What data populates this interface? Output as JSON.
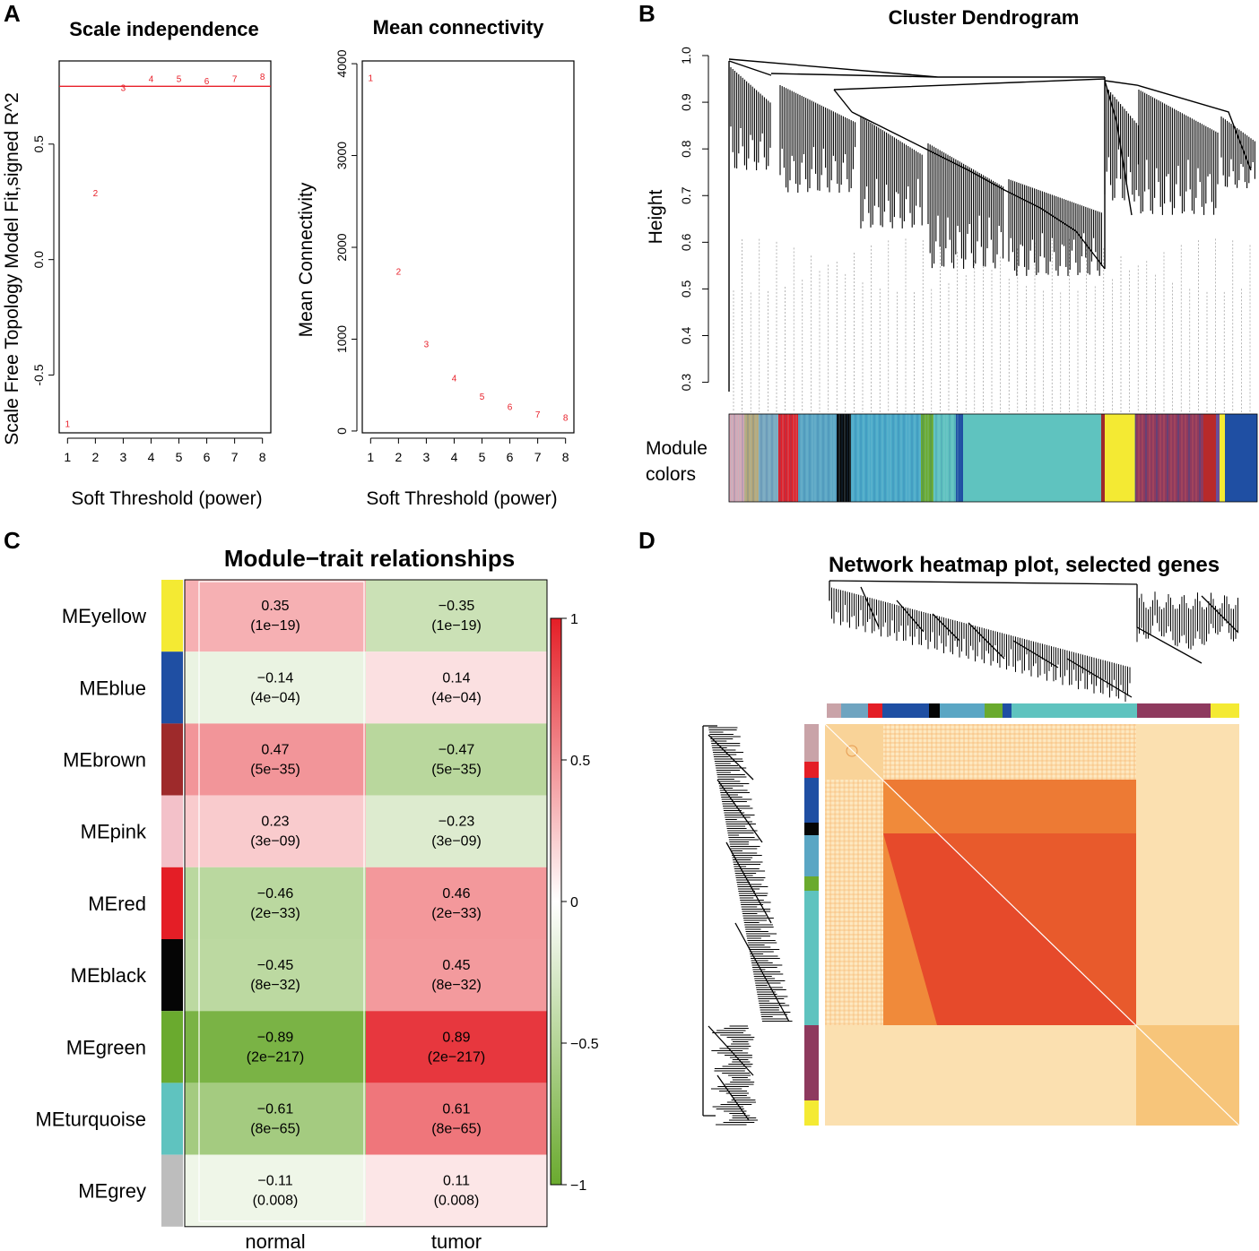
{
  "panels": {
    "A": "A",
    "B": "B",
    "C": "C",
    "D": "D"
  },
  "chart_data": [
    {
      "type": "scatter",
      "id": "scale_independence",
      "title": "Scale independence",
      "xlabel": "Soft Threshold (power)",
      "ylabel": "Scale Free Topology Model Fit,signed R^2",
      "x": [
        1,
        2,
        3,
        4,
        5,
        6,
        7,
        8
      ],
      "y": [
        -0.71,
        0.29,
        0.745,
        0.785,
        0.785,
        0.775,
        0.785,
        0.795
      ],
      "point_labels": [
        "1",
        "2",
        "3",
        "4",
        "5",
        "6",
        "7",
        "8"
      ],
      "xlim": [
        0.7,
        8.3
      ],
      "ylim": [
        -0.75,
        0.86
      ],
      "xticks": [
        "1",
        "2",
        "3",
        "4",
        "5",
        "6",
        "7",
        "8"
      ],
      "yticks": [
        "-0.5",
        "0.0",
        "0.5"
      ],
      "yticks_values": [
        -0.5,
        0,
        0.5
      ],
      "hline": 0.75,
      "hline_color": "#e8202a",
      "point_color": "#e8202a"
    },
    {
      "type": "scatter",
      "id": "mean_connectivity",
      "title": "Mean connectivity",
      "xlabel": "Soft Threshold (power)",
      "ylabel": "Mean Connectivity",
      "x": [
        1,
        2,
        3,
        4,
        5,
        6,
        7,
        8
      ],
      "y": [
        3850,
        1740,
        950,
        580,
        380,
        270,
        185,
        150
      ],
      "point_labels": [
        "1",
        "2",
        "3",
        "4",
        "5",
        "6",
        "7",
        "8"
      ],
      "xlim": [
        0.7,
        8.3
      ],
      "ylim": [
        -20,
        4030
      ],
      "xticks": [
        "1",
        "2",
        "3",
        "4",
        "5",
        "6",
        "7",
        "8"
      ],
      "yticks": [
        "0",
        "1000",
        "2000",
        "3000",
        "4000"
      ],
      "yticks_values": [
        0,
        1000,
        2000,
        3000,
        4000
      ],
      "point_color": "#e8202a"
    },
    {
      "type": "dendrogram",
      "id": "cluster_dendrogram",
      "title": "Cluster Dendrogram",
      "ylabel": "Height",
      "ylim": [
        0.28,
        1.0
      ],
      "yticks": [
        "0.3",
        "0.4",
        "0.5",
        "0.6",
        "0.7",
        "0.8",
        "0.9",
        "1.0"
      ],
      "yticks_values": [
        0.3,
        0.4,
        0.5,
        0.6,
        0.7,
        0.8,
        0.9,
        1.0
      ],
      "color_row_label": [
        "Module",
        "colors"
      ]
    },
    {
      "type": "heatmap",
      "id": "module_trait",
      "title": "Module−trait relationships",
      "columns": [
        "normal",
        "tumor"
      ],
      "rows": [
        {
          "label": "MEyellow",
          "color": "#f4ea33",
          "values": [
            0.35,
            -0.35
          ],
          "pvalues": [
            "(1e−19)",
            "(1e−19)"
          ],
          "text": [
            "0.35",
            "−0.35"
          ]
        },
        {
          "label": "MEblue",
          "color": "#1f4fa3",
          "values": [
            -0.14,
            0.14
          ],
          "pvalues": [
            "(4e−04)",
            "(4e−04)"
          ],
          "text": [
            "−0.14",
            "0.14"
          ]
        },
        {
          "label": "MEbrown",
          "color": "#9e2a2b",
          "values": [
            0.47,
            -0.47
          ],
          "pvalues": [
            "(5e−35)",
            "(5e−35)"
          ],
          "text": [
            "0.47",
            "−0.47"
          ]
        },
        {
          "label": "MEpink",
          "color": "#f3c1c9",
          "values": [
            0.23,
            -0.23
          ],
          "pvalues": [
            "(3e−09)",
            "(3e−09)"
          ],
          "text": [
            "0.23",
            "−0.23"
          ]
        },
        {
          "label": "MEred",
          "color": "#e41e26",
          "values": [
            -0.46,
            0.46
          ],
          "pvalues": [
            "(2e−33)",
            "(2e−33)"
          ],
          "text": [
            "−0.46",
            "0.46"
          ]
        },
        {
          "label": "MEblack",
          "color": "#050505",
          "values": [
            -0.45,
            0.45
          ],
          "pvalues": [
            "(8e−32)",
            "(8e−32)"
          ],
          "text": [
            "−0.45",
            "0.45"
          ]
        },
        {
          "label": "MEgreen",
          "color": "#6aaa2e",
          "values": [
            -0.89,
            0.89
          ],
          "pvalues": [
            "(2e−217)",
            "(2e−217)"
          ],
          "text": [
            "−0.89",
            "0.89"
          ]
        },
        {
          "label": "MEturquoise",
          "color": "#5fc3bf",
          "values": [
            -0.61,
            0.61
          ],
          "pvalues": [
            "(8e−65)",
            "(8e−65)"
          ],
          "text": [
            "−0.61",
            "0.61"
          ]
        },
        {
          "label": "MEgrey",
          "color": "#bdbdbd",
          "values": [
            -0.11,
            0.11
          ],
          "pvalues": [
            "(0.008)",
            "(0.008)"
          ],
          "text": [
            "−0.11",
            "0.11"
          ]
        }
      ],
      "colorbar": {
        "range": [
          -1,
          1
        ],
        "ticks": [
          "1",
          "0.5",
          "0",
          "−0.5",
          "−1"
        ],
        "ticks_values": [
          1,
          0.5,
          0,
          -0.5,
          -1
        ]
      },
      "low_color": "#6aaa2e",
      "mid_color": "#ffffff",
      "high_color": "#e41e26"
    },
    {
      "type": "heatmap",
      "id": "network_heatmap",
      "title": "Network heatmap plot, selected genes"
    }
  ]
}
